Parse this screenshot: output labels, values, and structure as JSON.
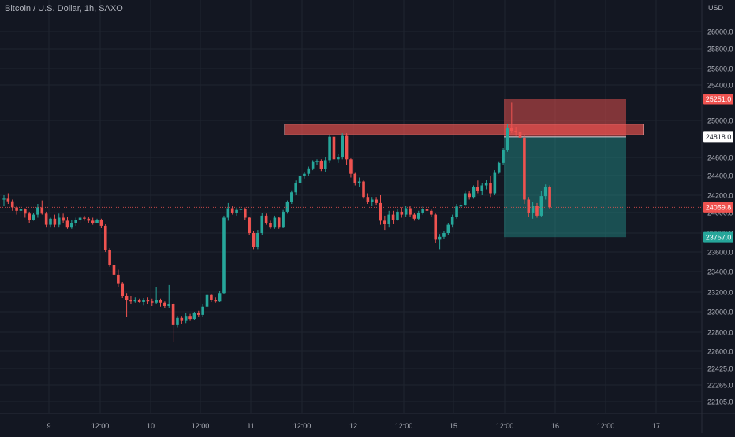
{
  "header": {
    "title": "Bitcoin / U.S. Dollar, 1h, SAXO",
    "currency": "USD"
  },
  "colors": {
    "background": "#131722",
    "grid": "#1f2430",
    "up": "#26a69a",
    "down": "#ef5350",
    "axis_text": "#b2b5be",
    "zone_red": "#ef5350",
    "zone_green": "#26a69a"
  },
  "chart_data": {
    "type": "candlestick",
    "title": "Bitcoin / U.S. Dollar, 1h, SAXO",
    "y_ticks": [
      "26000.0",
      "25800.0",
      "25600.0",
      "25400.0",
      "25000.0",
      "24600.0",
      "24400.0",
      "24200.0",
      "24000.0",
      "23800.0",
      "23600.0",
      "23400.0",
      "23200.0",
      "23000.0",
      "22800.0",
      "22600.0",
      "22425.0",
      "22265.0",
      "22105.0"
    ],
    "x_ticks": [
      "9",
      "12:00",
      "10",
      "12:00",
      "11",
      "12:00",
      "12",
      "12:00",
      "15",
      "12:00",
      "16",
      "12:00",
      "17"
    ],
    "price_labels": [
      {
        "text": "25251.0",
        "kind": "stop"
      },
      {
        "text": "24818.0",
        "kind": "entry"
      },
      {
        "text": "24059.8",
        "kind": "last"
      },
      {
        "text": "23757.0",
        "kind": "target"
      }
    ],
    "resistance_zone": {
      "low": 24840,
      "high": 24960
    },
    "short_position": {
      "entry": 24818,
      "stop": 25251,
      "target": 23757
    },
    "ohlc": [
      [
        24150,
        24200,
        24080,
        24160
      ],
      [
        24160,
        24220,
        24100,
        24130
      ],
      [
        24130,
        24150,
        24020,
        24060
      ],
      [
        24060,
        24080,
        23980,
        24020
      ],
      [
        24020,
        24090,
        23960,
        24040
      ],
      [
        24040,
        24050,
        23950,
        23990
      ],
      [
        23990,
        24010,
        23900,
        23930
      ],
      [
        23930,
        24000,
        23920,
        23980
      ],
      [
        23980,
        24100,
        23950,
        24060
      ],
      [
        24060,
        24140,
        23980,
        23990
      ],
      [
        23990,
        24010,
        23860,
        23880
      ],
      [
        23880,
        23950,
        23860,
        23940
      ],
      [
        23940,
        23980,
        23860,
        23880
      ],
      [
        23880,
        23990,
        23860,
        23950
      ],
      [
        23950,
        23990,
        23900,
        23920
      ],
      [
        23920,
        23960,
        23840,
        23860
      ],
      [
        23860,
        23930,
        23840,
        23900
      ],
      [
        23900,
        23950,
        23870,
        23930
      ],
      [
        23930,
        23970,
        23900,
        23950
      ],
      [
        23950,
        23970,
        23920,
        23940
      ],
      [
        23940,
        23960,
        23900,
        23920
      ],
      [
        23920,
        23950,
        23880,
        23900
      ],
      [
        23900,
        23940,
        23900,
        23930
      ],
      [
        23930,
        23940,
        23850,
        23870
      ],
      [
        23870,
        23890,
        23600,
        23620
      ],
      [
        23620,
        23640,
        23450,
        23470
      ],
      [
        23470,
        23520,
        23300,
        23370
      ],
      [
        23370,
        23420,
        23250,
        23280
      ],
      [
        23280,
        23300,
        23140,
        23160
      ],
      [
        23160,
        23190,
        22950,
        23120
      ],
      [
        23120,
        23160,
        23080,
        23110
      ],
      [
        23110,
        23150,
        23090,
        23120
      ],
      [
        23120,
        23130,
        23090,
        23100
      ],
      [
        23100,
        23140,
        23070,
        23120
      ],
      [
        23120,
        23150,
        23080,
        23110
      ],
      [
        23110,
        23130,
        23060,
        23090
      ],
      [
        23090,
        23250,
        23080,
        23120
      ],
      [
        23120,
        23130,
        23050,
        23090
      ],
      [
        23090,
        23110,
        23040,
        23060
      ],
      [
        23060,
        23270,
        23040,
        23080
      ],
      [
        23080,
        23090,
        22700,
        22870
      ],
      [
        22870,
        22960,
        22850,
        22940
      ],
      [
        22940,
        22960,
        22880,
        22910
      ],
      [
        22910,
        22990,
        22890,
        22960
      ],
      [
        22960,
        22980,
        22910,
        22930
      ],
      [
        22930,
        23000,
        22920,
        22990
      ],
      [
        22990,
        23010,
        22950,
        22970
      ],
      [
        22970,
        23080,
        22950,
        23050
      ],
      [
        23050,
        23190,
        23030,
        23170
      ],
      [
        23170,
        23180,
        23100,
        23120
      ],
      [
        23120,
        23150,
        23090,
        23110
      ],
      [
        23110,
        23210,
        23100,
        23190
      ],
      [
        23190,
        23970,
        23180,
        23950
      ],
      [
        23950,
        24110,
        23920,
        24050
      ],
      [
        24050,
        24080,
        23980,
        24000
      ],
      [
        24000,
        24060,
        23970,
        24030
      ],
      [
        24030,
        24080,
        24000,
        24040
      ],
      [
        24040,
        24060,
        23930,
        23950
      ],
      [
        23950,
        23960,
        23780,
        23800
      ],
      [
        23800,
        23820,
        23630,
        23650
      ],
      [
        23650,
        23830,
        23630,
        23800
      ],
      [
        23800,
        24000,
        23780,
        23970
      ],
      [
        23970,
        23990,
        23880,
        23900
      ],
      [
        23900,
        23920,
        23840,
        23860
      ],
      [
        23860,
        23970,
        23840,
        23950
      ],
      [
        23950,
        23960,
        23840,
        23860
      ],
      [
        23860,
        24030,
        23850,
        24010
      ],
      [
        24010,
        24140,
        23990,
        24120
      ],
      [
        24120,
        24250,
        24100,
        24230
      ],
      [
        24230,
        24350,
        24200,
        24320
      ],
      [
        24320,
        24420,
        24300,
        24400
      ],
      [
        24400,
        24440,
        24370,
        24420
      ],
      [
        24420,
        24500,
        24400,
        24480
      ],
      [
        24480,
        24570,
        24460,
        24550
      ],
      [
        24550,
        24580,
        24520,
        24560
      ],
      [
        24560,
        24580,
        24450,
        24470
      ],
      [
        24470,
        24600,
        24440,
        24570
      ],
      [
        24570,
        24840,
        24540,
        24820
      ],
      [
        24820,
        24850,
        24560,
        24580
      ],
      [
        24580,
        24640,
        24540,
        24600
      ],
      [
        24600,
        24860,
        24580,
        24830
      ],
      [
        24830,
        24860,
        24520,
        24580
      ],
      [
        24580,
        24590,
        24380,
        24420
      ],
      [
        24420,
        24430,
        24300,
        24320
      ],
      [
        24320,
        24380,
        24280,
        24340
      ],
      [
        24340,
        24350,
        24160,
        24180
      ],
      [
        24180,
        24220,
        24100,
        24120
      ],
      [
        24120,
        24180,
        24080,
        24150
      ],
      [
        24150,
        24180,
        24090,
        24110
      ],
      [
        24110,
        24200,
        23880,
        23920
      ],
      [
        23920,
        23970,
        23830,
        23890
      ],
      [
        23890,
        24020,
        23860,
        23980
      ],
      [
        23980,
        24020,
        23890,
        23930
      ],
      [
        23930,
        24040,
        23920,
        24010
      ],
      [
        24010,
        24060,
        23950,
        23980
      ],
      [
        23980,
        24080,
        23960,
        24050
      ],
      [
        24050,
        24080,
        23960,
        23980
      ],
      [
        23980,
        24000,
        23920,
        23940
      ],
      [
        23940,
        24020,
        23930,
        24000
      ],
      [
        24000,
        24070,
        23980,
        24040
      ],
      [
        24040,
        24080,
        24000,
        24020
      ],
      [
        24020,
        24040,
        23960,
        23980
      ],
      [
        23980,
        23990,
        23700,
        23730
      ],
      [
        23730,
        23790,
        23630,
        23760
      ],
      [
        23760,
        23820,
        23740,
        23800
      ],
      [
        23800,
        23900,
        23780,
        23880
      ],
      [
        23880,
        23980,
        23860,
        23960
      ],
      [
        23960,
        24100,
        23940,
        24070
      ],
      [
        24070,
        24120,
        24030,
        24090
      ],
      [
        24090,
        24250,
        24070,
        24220
      ],
      [
        24220,
        24240,
        24150,
        24180
      ],
      [
        24180,
        24300,
        24160,
        24280
      ],
      [
        24280,
        24350,
        24220,
        24240
      ],
      [
        24240,
        24320,
        24200,
        24300
      ],
      [
        24300,
        24360,
        24260,
        24320
      ],
      [
        24320,
        24400,
        24180,
        24220
      ],
      [
        24220,
        24460,
        24200,
        24430
      ],
      [
        24430,
        24550,
        24420,
        24540
      ],
      [
        24540,
        24700,
        24520,
        24680
      ],
      [
        24680,
        24960,
        24660,
        24920
      ],
      [
        24920,
        25210,
        24860,
        24880
      ],
      [
        24880,
        24930,
        24830,
        24870
      ],
      [
        24870,
        24920,
        24800,
        24810
      ],
      [
        24810,
        24850,
        24100,
        24150
      ],
      [
        24150,
        24180,
        23960,
        24000
      ],
      [
        24000,
        24120,
        23940,
        24080
      ],
      [
        24080,
        24110,
        23950,
        23970
      ],
      [
        23970,
        24240,
        23960,
        24190
      ],
      [
        24190,
        24310,
        24150,
        24280
      ],
      [
        24280,
        24300,
        24040,
        24060
      ]
    ]
  }
}
